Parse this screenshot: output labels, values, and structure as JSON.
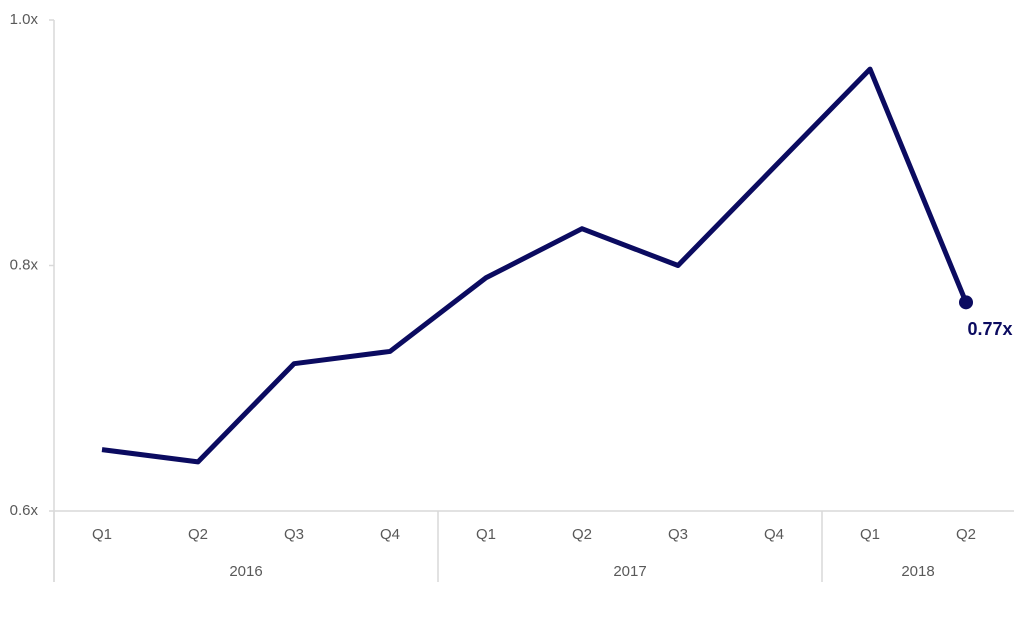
{
  "chart_data": {
    "type": "line",
    "groups": [
      {
        "label": "2016",
        "categories": [
          "Q1",
          "Q2",
          "Q3",
          "Q4"
        ]
      },
      {
        "label": "2017",
        "categories": [
          "Q1",
          "Q2",
          "Q3",
          "Q4"
        ]
      },
      {
        "label": "2018",
        "categories": [
          "Q1",
          "Q2"
        ]
      }
    ],
    "series": [
      {
        "color": "#0b0b60",
        "values": [
          0.65,
          0.64,
          0.72,
          0.73,
          0.79,
          0.83,
          0.8,
          0.88,
          0.96,
          0.77
        ],
        "value_labels": [
          null,
          null,
          null,
          null,
          null,
          null,
          null,
          null,
          null,
          "0.77x"
        ]
      }
    ],
    "ylim": [
      0.6,
      1.0
    ],
    "yticks": [
      {
        "value": 0.6,
        "label": "0.6x"
      },
      {
        "value": 0.8,
        "label": "0.8x"
      },
      {
        "value": 1.0,
        "label": "1.0x"
      }
    ],
    "grid": false
  }
}
